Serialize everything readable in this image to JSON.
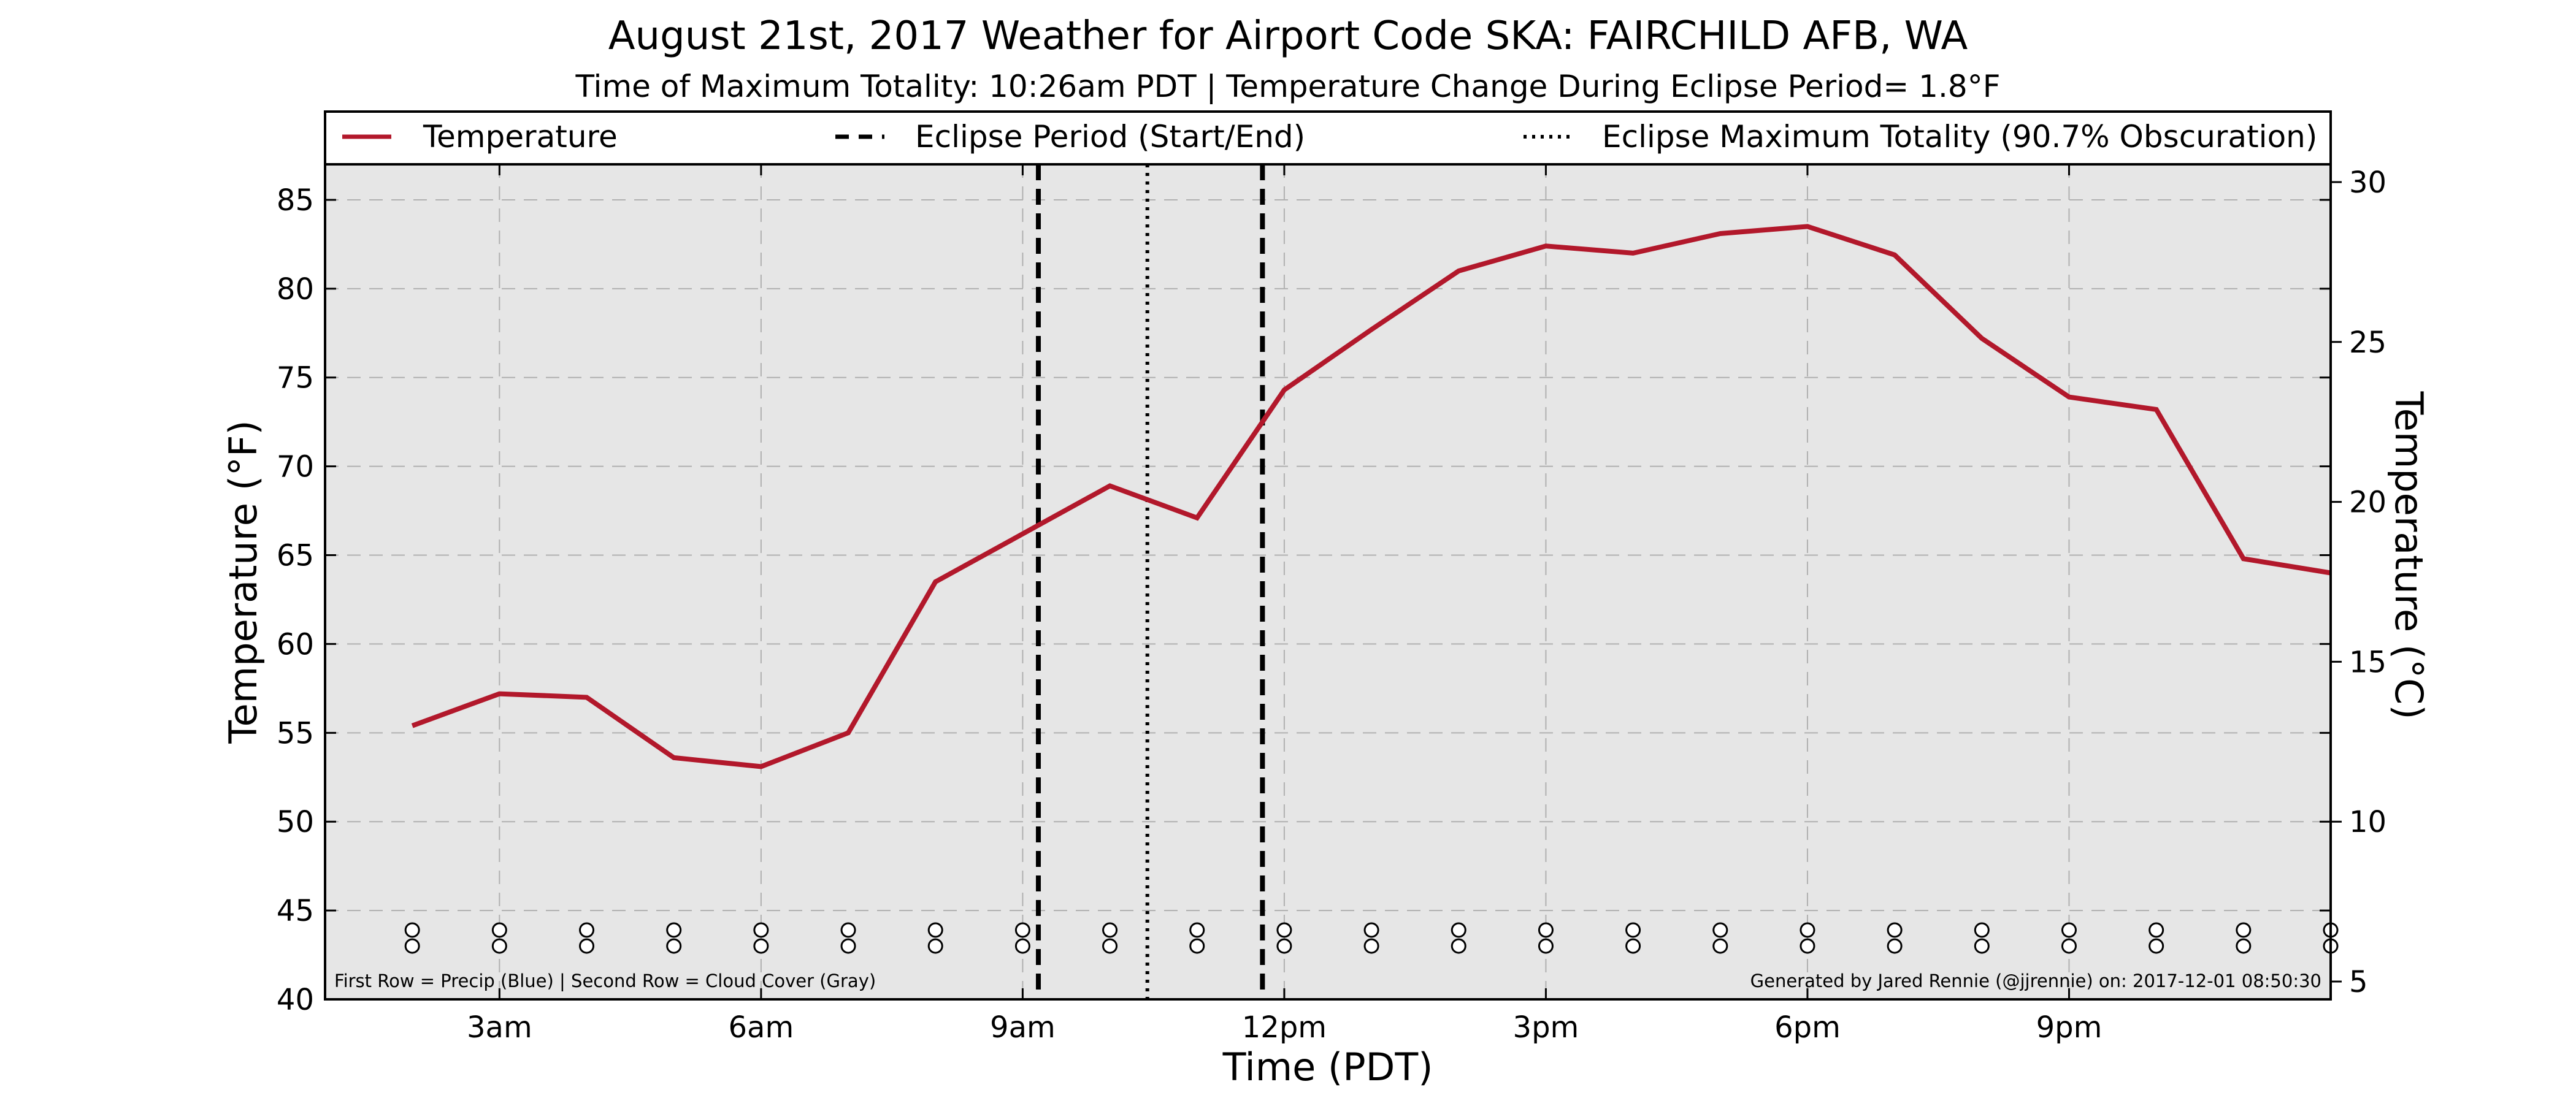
{
  "chart_data": {
    "type": "line",
    "title": "August 21st, 2017 Weather for Airport Code SKA: FAIRCHILD AFB, WA",
    "subtitle": "Time of Maximum Totality: 10:26am PDT | Temperature Change During Eclipse Period= 1.8°F",
    "xlabel": "Time (PDT)",
    "ylabel": "Temperature (°F)",
    "ylabel_right": "Temperature (°C)",
    "xlim": [
      1,
      24
    ],
    "ylim": [
      40,
      87
    ],
    "ylim_right_celsius": [
      4.44,
      30.56
    ],
    "x_ticks": [
      {
        "x": 3,
        "label": "3am"
      },
      {
        "x": 6,
        "label": "6am"
      },
      {
        "x": 9,
        "label": "9am"
      },
      {
        "x": 12,
        "label": "12pm"
      },
      {
        "x": 15,
        "label": "3pm"
      },
      {
        "x": 18,
        "label": "6pm"
      },
      {
        "x": 21,
        "label": "9pm"
      }
    ],
    "y_ticks": [
      40,
      45,
      50,
      55,
      60,
      65,
      70,
      75,
      80,
      85
    ],
    "y_ticks_right": [
      5,
      10,
      15,
      20,
      25,
      30
    ],
    "grid": true,
    "legend_position": "top",
    "series": [
      {
        "name": "Temperature",
        "color": "#b2182b",
        "x": [
          2,
          3,
          4,
          5,
          6,
          7,
          8,
          9,
          10,
          11,
          12,
          13,
          14,
          15,
          16,
          17,
          18,
          19,
          20,
          21,
          22,
          23,
          24
        ],
        "y": [
          55.4,
          57.2,
          57.0,
          53.6,
          53.1,
          55.0,
          63.5,
          66.2,
          68.9,
          67.1,
          74.3,
          77.7,
          81.0,
          82.4,
          82.0,
          83.1,
          83.5,
          81.9,
          77.2,
          73.9,
          73.2,
          64.8,
          64.0
        ]
      }
    ],
    "eclipse_period": {
      "name": "Eclipse Period (Start/End)",
      "start": 9.18,
      "end": 11.75,
      "color": "#000000"
    },
    "eclipse_max": {
      "name": "Eclipse Maximum Totality (90.7% Obscuration)",
      "x": 10.43,
      "color": "#000000"
    },
    "marker_rows": {
      "x": [
        9,
        10,
        11,
        12,
        13,
        14,
        15,
        16,
        17,
        18,
        19,
        20,
        21,
        22,
        23,
        24
      ],
      "x_all": [
        2,
        3,
        4,
        5,
        6,
        7,
        8,
        9,
        10,
        11,
        12,
        13,
        14,
        15,
        16,
        17,
        18,
        19,
        20,
        21,
        22,
        23,
        24
      ],
      "precip_y": 43.9,
      "cloud_y": 43.0
    },
    "footnote_left": "First Row = Precip (Blue) | Second Row = Cloud Cover (Gray)",
    "footnote_right": "Generated by Jared Rennie (@jjrennie) on: 2017-12-01 08:50:30",
    "colors": {
      "background": "#e6e6e6",
      "grid": "#b0b0b0",
      "line": "#b2182b"
    }
  }
}
